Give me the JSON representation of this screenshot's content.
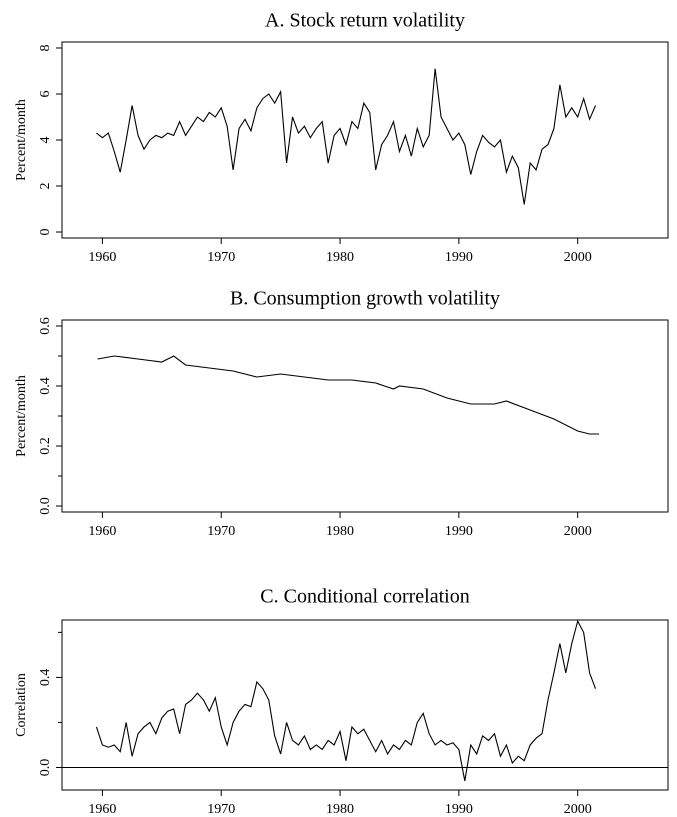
{
  "chart_data": [
    {
      "type": "line",
      "title": "A.  Stock return volatility",
      "ylabel": "Percent/month",
      "color": "#000000",
      "x": [
        1959.5,
        1960,
        1960.5,
        1961,
        1961.5,
        1962,
        1962.5,
        1963,
        1963.5,
        1964,
        1964.5,
        1965,
        1965.5,
        1966,
        1966.5,
        1967,
        1967.5,
        1968,
        1968.5,
        1969,
        1969.5,
        1970,
        1970.5,
        1971,
        1971.5,
        1972,
        1972.5,
        1973,
        1973.5,
        1974,
        1974.5,
        1975,
        1975.5,
        1976,
        1976.5,
        1977,
        1977.5,
        1978,
        1978.5,
        1979,
        1979.5,
        1980,
        1980.5,
        1981,
        1981.5,
        1982,
        1982.5,
        1983,
        1983.5,
        1984,
        1984.5,
        1985,
        1985.5,
        1986,
        1986.5,
        1987,
        1987.5,
        1988,
        1988.5,
        1989,
        1989.5,
        1990,
        1990.5,
        1991,
        1991.5,
        1992,
        1992.5,
        1993,
        1993.5,
        1994,
        1994.5,
        1995,
        1995.5,
        1996,
        1996.5,
        1997,
        1997.5,
        1998,
        1998.5,
        1999,
        1999.5,
        2000,
        2000.5,
        2001,
        2001.5
      ],
      "values": [
        4.3,
        4.1,
        4.3,
        3.5,
        2.6,
        4.0,
        5.5,
        4.2,
        3.6,
        4.0,
        4.2,
        4.1,
        4.3,
        4.2,
        4.8,
        4.2,
        4.6,
        5.0,
        4.8,
        5.2,
        5.0,
        5.4,
        4.6,
        2.7,
        4.5,
        4.9,
        4.4,
        5.4,
        5.8,
        6.0,
        5.6,
        6.1,
        3.0,
        5.0,
        4.3,
        4.6,
        4.1,
        4.5,
        4.8,
        3.0,
        4.2,
        4.5,
        3.8,
        4.8,
        4.5,
        5.6,
        5.2,
        2.7,
        3.8,
        4.2,
        4.8,
        3.5,
        4.2,
        3.3,
        4.5,
        3.7,
        4.2,
        7.1,
        5.0,
        4.5,
        4.0,
        4.3,
        3.8,
        2.5,
        3.5,
        4.2,
        3.9,
        3.7,
        4.0,
        2.6,
        3.3,
        2.8,
        1.2,
        3.0,
        2.7,
        3.6,
        3.8,
        4.5,
        6.4,
        5.0,
        5.4,
        5.0,
        5.8,
        4.9,
        5.5
      ],
      "xlim": [
        1956.6,
        2007.6
      ],
      "xticks": [
        1960,
        1970,
        1980,
        1990,
        2000
      ],
      "ylim": [
        -0.26,
        8.26
      ],
      "yticks": [
        0,
        2,
        4,
        6,
        8
      ]
    },
    {
      "type": "line",
      "title": "B.  Consumption growth volatility",
      "ylabel": "Percent/month",
      "color": "#000000",
      "x": [
        1959.6,
        1961,
        1963,
        1965,
        1966,
        1967,
        1969,
        1971,
        1973,
        1975,
        1977,
        1979,
        1981,
        1983,
        1984.5,
        1985,
        1987,
        1989,
        1991,
        1993,
        1994,
        1996,
        1998,
        2000,
        2001,
        2001.8
      ],
      "values": [
        0.49,
        0.5,
        0.49,
        0.48,
        0.5,
        0.47,
        0.46,
        0.45,
        0.43,
        0.44,
        0.43,
        0.42,
        0.42,
        0.41,
        0.39,
        0.4,
        0.39,
        0.36,
        0.34,
        0.34,
        0.35,
        0.32,
        0.29,
        0.25,
        0.24,
        0.24
      ],
      "xlim": [
        1956.6,
        2007.6
      ],
      "xticks": [
        1960,
        1970,
        1980,
        1990,
        2000
      ],
      "ylim": [
        -0.02,
        0.62
      ],
      "yticks": [
        {
          "value": 0,
          "label": "0.0"
        },
        {
          "value": 0.2,
          "label": "0.2"
        },
        {
          "value": 0.4,
          "label": "0.4"
        },
        {
          "value": 0.6,
          "label": "0.6"
        }
      ],
      "yminor": [
        0.1,
        0.3,
        0.5
      ]
    },
    {
      "type": "line",
      "title": "C.  Conditional correlation",
      "ylabel": "Correlation",
      "color": "#000000",
      "x": [
        1959.5,
        1960,
        1960.5,
        1961,
        1961.5,
        1962,
        1962.5,
        1963,
        1963.5,
        1964,
        1964.5,
        1965,
        1965.5,
        1966,
        1966.5,
        1967,
        1967.5,
        1968,
        1968.5,
        1969,
        1969.5,
        1970,
        1970.5,
        1971,
        1971.5,
        1972,
        1972.5,
        1973,
        1973.5,
        1974,
        1974.5,
        1975,
        1975.5,
        1976,
        1976.5,
        1977,
        1977.5,
        1978,
        1978.5,
        1979,
        1979.5,
        1980,
        1980.5,
        1981,
        1981.5,
        1982,
        1982.5,
        1983,
        1983.5,
        1984,
        1984.5,
        1985,
        1985.5,
        1986,
        1986.5,
        1987,
        1987.5,
        1988,
        1988.5,
        1989,
        1989.5,
        1990,
        1990.5,
        1991,
        1991.5,
        1992,
        1992.5,
        1993,
        1993.5,
        1994,
        1994.5,
        1995,
        1995.5,
        1996,
        1996.5,
        1997,
        1997.5,
        1998,
        1998.5,
        1999,
        1999.5,
        2000,
        2000.5,
        2001,
        2001.5
      ],
      "values": [
        0.18,
        0.1,
        0.09,
        0.1,
        0.07,
        0.2,
        0.05,
        0.15,
        0.18,
        0.2,
        0.15,
        0.22,
        0.25,
        0.26,
        0.15,
        0.28,
        0.3,
        0.33,
        0.3,
        0.25,
        0.31,
        0.18,
        0.1,
        0.2,
        0.25,
        0.28,
        0.27,
        0.38,
        0.35,
        0.3,
        0.14,
        0.06,
        0.2,
        0.12,
        0.1,
        0.14,
        0.08,
        0.1,
        0.08,
        0.12,
        0.1,
        0.16,
        0.03,
        0.18,
        0.15,
        0.17,
        0.12,
        0.07,
        0.12,
        0.06,
        0.1,
        0.08,
        0.12,
        0.1,
        0.2,
        0.24,
        0.15,
        0.1,
        0.12,
        0.1,
        0.11,
        0.08,
        -0.06,
        0.1,
        0.06,
        0.14,
        0.12,
        0.15,
        0.05,
        0.1,
        0.02,
        0.05,
        0.03,
        0.1,
        0.13,
        0.15,
        0.3,
        0.42,
        0.55,
        0.42,
        0.55,
        0.65,
        0.6,
        0.42,
        0.35
      ],
      "xlim": [
        1956.6,
        2007.6
      ],
      "xticks": [
        1960,
        1970,
        1980,
        1990,
        2000
      ],
      "ylim": [
        -0.1,
        0.655
      ],
      "yticks": [
        {
          "value": 0,
          "label": "0.0"
        },
        {
          "value": 0.4,
          "label": "0.4"
        }
      ],
      "yminor": [
        0.2,
        0.6
      ],
      "zero_line": true
    }
  ]
}
